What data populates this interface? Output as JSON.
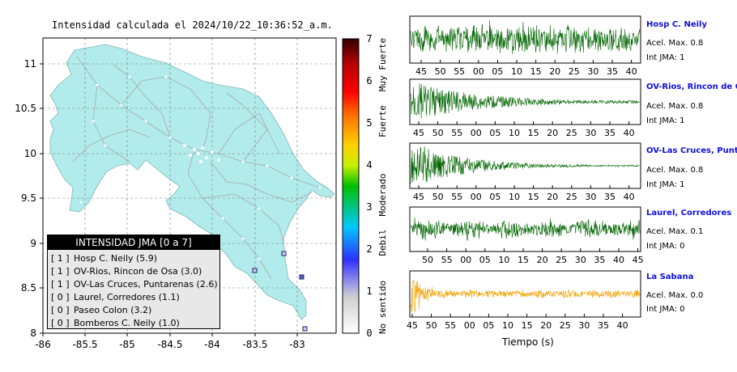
{
  "map": {
    "title": "Intensidad calculada el 2024/10/22_10:36:52_a.m.",
    "x_ticks": [
      "-86",
      "-85.5",
      "-85",
      "-84.5",
      "-84",
      "-83.5",
      "-83"
    ],
    "y_ticks": [
      "11",
      "10.5",
      "10",
      "9.5",
      "9",
      "8.5",
      "8"
    ],
    "land_color": "#b2ebeb"
  },
  "colorbar": {
    "ticks": [
      "0",
      "1",
      "2",
      "3",
      "4",
      "5",
      "6",
      "7"
    ],
    "category_labels": [
      "No sentido",
      "Debil",
      "Moderado",
      "Fuerte",
      "Muy Fuerte"
    ]
  },
  "legend": {
    "title": "INTENSIDAD JMA [0 a 7]",
    "items": [
      {
        "code": "[ 1 ]",
        "label": "Hosp C. Neily (5.9)"
      },
      {
        "code": "[ 1 ]",
        "label": "OV-Rios, Rincon de Osa (3.0)"
      },
      {
        "code": "[ 1 ]",
        "label": "OV-Las Cruces, Puntarenas (2.6)"
      },
      {
        "code": "[ 0 ]",
        "label": "Laurel, Corredores (1.1)"
      },
      {
        "code": "[ 0 ]",
        "label": "Paseo Colon (3.2)"
      },
      {
        "code": "[ 0 ]",
        "label": "Bomberos C. Neily (1.0)"
      }
    ]
  },
  "waveforms": {
    "x_label": "Tiempo (s)",
    "stations": [
      {
        "name": "Hosp C. Neily",
        "acel": "Acel. Max. 0.8",
        "int": "Int JMA: 1",
        "color": "#006400",
        "ticks": [
          "45",
          "50",
          "55",
          "00",
          "05",
          "10",
          "15",
          "20",
          "25",
          "30",
          "35",
          "40"
        ]
      },
      {
        "name": "OV-Rios, Rincon de Os",
        "acel": "Acel. Max. 0.8",
        "int": "Int JMA: 1",
        "color": "#006400",
        "ticks": [
          "45",
          "50",
          "55",
          "00",
          "05",
          "10",
          "15",
          "20",
          "25",
          "30",
          "35",
          "40"
        ]
      },
      {
        "name": "OV-Las Cruces, Puntar",
        "acel": "Acel. Max. 0.8",
        "int": "Int JMA: 1",
        "color": "#006400",
        "ticks": [
          "45",
          "50",
          "55",
          "00",
          "05",
          "10",
          "15",
          "20",
          "25",
          "30",
          "35",
          "40"
        ]
      },
      {
        "name": "Laurel, Corredores",
        "acel": "Acel. Max. 0.1",
        "int": "Int JMA: 0",
        "color": "#006400",
        "ticks": [
          "50",
          "55",
          "00",
          "05",
          "10",
          "15",
          "20",
          "25",
          "30",
          "35",
          "40",
          "45"
        ]
      },
      {
        "name": "La Sabana",
        "acel": "Acel. Max. 0.0",
        "int": "Int JMA: 0",
        "color": "#f0a000",
        "ticks": [
          "45",
          "50",
          "55",
          "00",
          "05",
          "10",
          "15",
          "20",
          "25",
          "30",
          "35",
          "40"
        ]
      }
    ]
  },
  "chart_data": [
    {
      "type": "map",
      "title": "Intensidad calculada el 2024/10/22_10:36:52_a.m.",
      "xlim": [
        -86,
        -82.6
      ],
      "ylim": [
        8,
        11.3
      ],
      "stations": [
        {
          "name": "Hosp C. Neily",
          "lon": -82.95,
          "lat": 8.64,
          "jma": 1
        },
        {
          "name": "OV-Rios, Rincon de Osa",
          "lon": -83.47,
          "lat": 8.7,
          "jma": 1
        },
        {
          "name": "OV-Las Cruces, Puntarenas",
          "lon": -83.15,
          "lat": 8.88,
          "jma": 1
        },
        {
          "name": "Laurel, Corredores",
          "lon": -82.92,
          "lat": 8.05,
          "jma": 0
        }
      ]
    },
    {
      "type": "line",
      "x_label": "Tiempo (s)",
      "series": [
        {
          "name": "Hosp C. Neily",
          "peak_accel": 0.8
        },
        {
          "name": "OV-Rios, Rincon de Os",
          "peak_accel": 0.8
        },
        {
          "name": "OV-Las Cruces, Puntar",
          "peak_accel": 0.8
        },
        {
          "name": "Laurel, Corredores",
          "peak_accel": 0.1
        },
        {
          "name": "La Sabana",
          "peak_accel": 0.0
        }
      ]
    }
  ]
}
